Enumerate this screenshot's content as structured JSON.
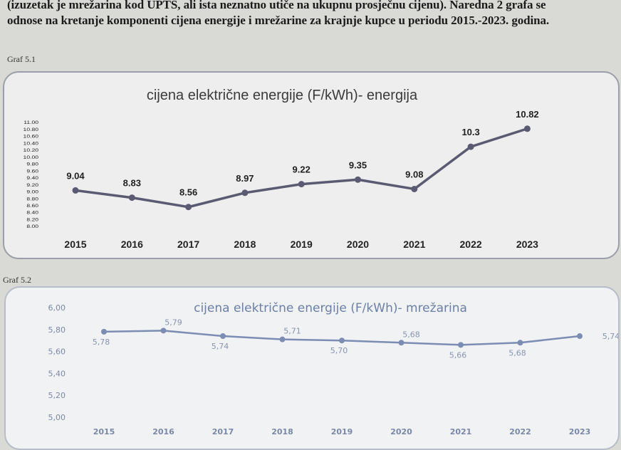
{
  "document": {
    "line1": "(izuzetak je mrežarina kod UPTS, ali ista neznatno utiče na ukupnu prosječnu cijenu). Naredna 2 grafa se",
    "line2": "odnose na kretanje komponenti cijena  energije i mrežarine za krajnje kupce u periodu 2015.-2023. godina."
  },
  "graf1_label": "Graf 5.1",
  "graf2_label": "Graf 5.2",
  "chart_data": [
    {
      "type": "line",
      "title": "cijena električne energije (F/kWh)- energija",
      "categories": [
        "2015",
        "2016",
        "2017",
        "2018",
        "2019",
        "2020",
        "2021",
        "2022",
        "2023"
      ],
      "values": [
        9.04,
        8.83,
        8.56,
        8.97,
        9.22,
        9.35,
        9.08,
        10.3,
        10.82
      ],
      "value_labels": [
        "9.04",
        "8.83",
        "8.56",
        "8.97",
        "9.22",
        "9.35",
        "9.08",
        "10.3",
        "10.82"
      ],
      "yticks": [
        "8.00",
        "8.20",
        "8.40",
        "8.60",
        "8.80",
        "9.00",
        "9.20",
        "9.40",
        "9.60",
        "9.80",
        "10.00",
        "10.20",
        "10.40",
        "10.60",
        "10.80",
        "11.00"
      ],
      "ylim": [
        8.0,
        11.0
      ],
      "color": "#5a5b72",
      "grid": false
    },
    {
      "type": "line",
      "title": "cijena električne energije (F/kWh)- mrežarina",
      "categories": [
        "2015",
        "2016",
        "2017",
        "2018",
        "2019",
        "2020",
        "2021",
        "2022",
        "2023"
      ],
      "values": [
        5.78,
        5.79,
        5.74,
        5.71,
        5.7,
        5.68,
        5.66,
        5.68,
        5.74
      ],
      "value_labels": [
        "5,78",
        "5,79",
        "5,74",
        "5,71",
        "5,70",
        "5,68",
        "5,66",
        "5,68",
        "5,74"
      ],
      "yticks": [
        "5,00",
        "5,20",
        "5,40",
        "5,60",
        "5,80",
        "6,00"
      ],
      "ylim": [
        5.0,
        6.0
      ],
      "color": "#7b8db3",
      "grid": false
    }
  ]
}
